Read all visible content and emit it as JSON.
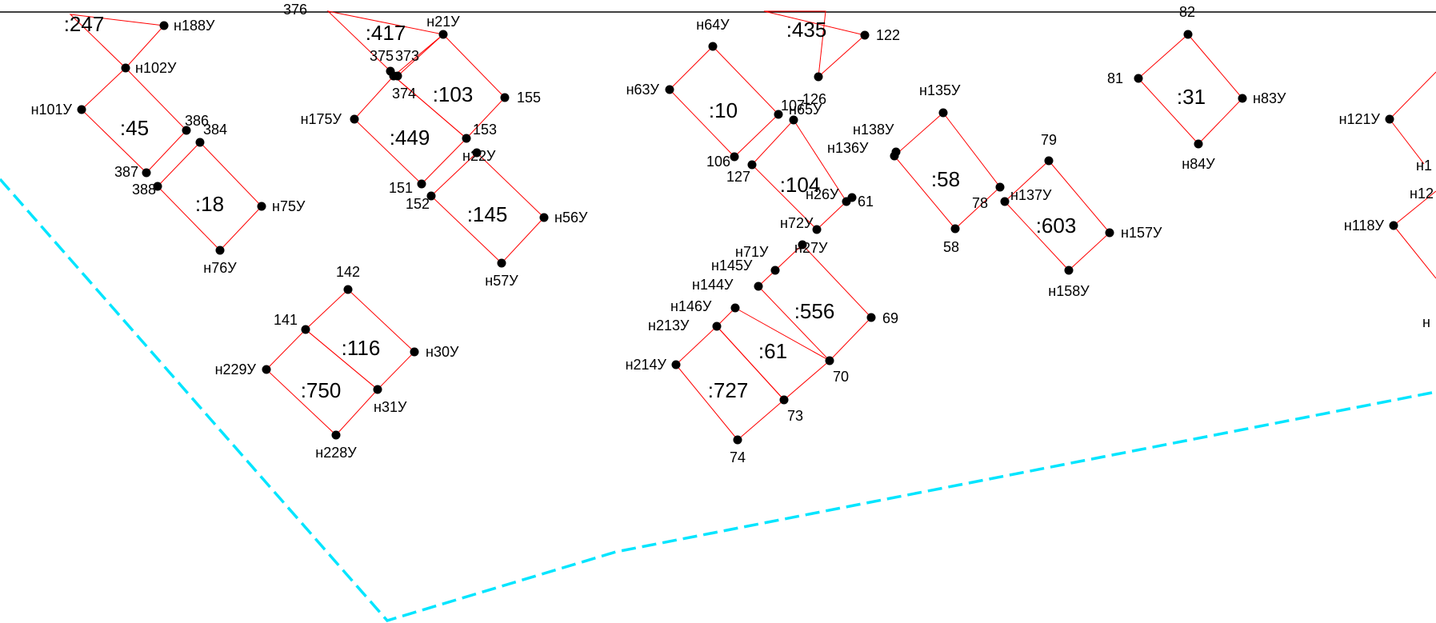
{
  "colors": {
    "parcel": "#ff0000",
    "boundary": "#00e5ff",
    "point": "#000000",
    "text": "#000000"
  },
  "parcels": [
    {
      "id": "247",
      "label": ":247",
      "pts": [
        "a376",
        "n188U",
        "n102U"
      ]
    },
    {
      "id": "45",
      "label": ":45",
      "pts": [
        "n102U",
        "p386",
        "p387",
        "n101U"
      ]
    },
    {
      "id": "18",
      "label": ":18",
      "pts": [
        "p384",
        "n75U",
        "n76U",
        "p388"
      ]
    },
    {
      "id": "417",
      "label": ":417",
      "pts": [
        "p376",
        "n21U",
        "p373",
        "p375"
      ]
    },
    {
      "id": "103",
      "label": ":103",
      "pts": [
        "n21U",
        "p155",
        "p153",
        "p374"
      ]
    },
    {
      "id": "449",
      "label": ":449",
      "pts": [
        "p374",
        "p153",
        "p151",
        "n175U"
      ]
    },
    {
      "id": "145",
      "label": ":145",
      "pts": [
        "n22U",
        "n56U",
        "n57U",
        "p152"
      ]
    },
    {
      "id": "116",
      "label": ":116",
      "pts": [
        "p142",
        "n30U",
        "n31U",
        "p141"
      ]
    },
    {
      "id": "750",
      "label": ":750",
      "pts": [
        "p141",
        "n31U",
        "n228U",
        "n229U"
      ]
    },
    {
      "id": "10",
      "label": ":10",
      "pts": [
        "n64U",
        "p107",
        "p106",
        "n63U"
      ]
    },
    {
      "id": "435",
      "label": ":435",
      "pts": [
        "a435l",
        "p122",
        "p126",
        "a435r"
      ]
    },
    {
      "id": "104",
      "label": ":104",
      "pts": [
        "n65U",
        "p61",
        "n72U",
        "p127"
      ]
    },
    {
      "id": "556",
      "label": ":556",
      "pts": [
        "n27U",
        "p69",
        "p70",
        "n144U"
      ]
    },
    {
      "id": "61",
      "label": ":61",
      "pts": [
        "n146U",
        "p70",
        "p73",
        "n213U"
      ]
    },
    {
      "id": "727",
      "label": ":727",
      "pts": [
        "n213U",
        "p73",
        "p74",
        "n214U"
      ]
    },
    {
      "id": "58",
      "label": ":58",
      "pts": [
        "n135U",
        "p78",
        "p58",
        "n138U"
      ]
    },
    {
      "id": "603",
      "label": ":603",
      "pts": [
        "p79",
        "n157U",
        "n158U",
        "n137U"
      ]
    },
    {
      "id": "31",
      "label": ":31",
      "pts": [
        "p82",
        "n83U",
        "n84U",
        "p81"
      ]
    }
  ],
  "points": [
    {
      "id": "n188U",
      "label": "н188У"
    },
    {
      "id": "n102U",
      "label": "н102У"
    },
    {
      "id": "n101U",
      "label": "н101У"
    },
    {
      "id": "p386",
      "label": "386"
    },
    {
      "id": "p384",
      "label": "384"
    },
    {
      "id": "p387",
      "label": "387"
    },
    {
      "id": "p388",
      "label": "388"
    },
    {
      "id": "n75U",
      "label": "н75У"
    },
    {
      "id": "n76U",
      "label": "н76У"
    },
    {
      "id": "p376",
      "label": "376"
    },
    {
      "id": "n21U",
      "label": "н21У"
    },
    {
      "id": "p375",
      "label": "375"
    },
    {
      "id": "p373",
      "label": "373"
    },
    {
      "id": "p374",
      "label": "374"
    },
    {
      "id": "p155",
      "label": "155"
    },
    {
      "id": "n175U",
      "label": "н175У"
    },
    {
      "id": "p153",
      "label": "153"
    },
    {
      "id": "n22U",
      "label": "н22У"
    },
    {
      "id": "p151",
      "label": "151"
    },
    {
      "id": "p152",
      "label": "152"
    },
    {
      "id": "n56U",
      "label": "н56У"
    },
    {
      "id": "n57U",
      "label": "н57У"
    },
    {
      "id": "p142",
      "label": "142"
    },
    {
      "id": "p141",
      "label": "141"
    },
    {
      "id": "n30U",
      "label": "н30У"
    },
    {
      "id": "n229U",
      "label": "н229У"
    },
    {
      "id": "n31U",
      "label": "н31У"
    },
    {
      "id": "n228U",
      "label": "н228У"
    },
    {
      "id": "n64U",
      "label": "н64У"
    },
    {
      "id": "p122",
      "label": "122"
    },
    {
      "id": "n63U",
      "label": "н63У"
    },
    {
      "id": "p126",
      "label": "126"
    },
    {
      "id": "p107",
      "label": "107"
    },
    {
      "id": "n65U",
      "label": "н65У"
    },
    {
      "id": "p106",
      "label": "106"
    },
    {
      "id": "p127",
      "label": "127"
    },
    {
      "id": "n26U",
      "label": "н26У"
    },
    {
      "id": "p61",
      "label": "61"
    },
    {
      "id": "n72U",
      "label": "н72У"
    },
    {
      "id": "n71U",
      "label": "н71У"
    },
    {
      "id": "n27U",
      "label": "н27У"
    },
    {
      "id": "n145U",
      "label": "н145У"
    },
    {
      "id": "n144U",
      "label": "н144У"
    },
    {
      "id": "n146U",
      "label": "н146У"
    },
    {
      "id": "n213U",
      "label": "н213У"
    },
    {
      "id": "n214U",
      "label": "н214У"
    },
    {
      "id": "p69",
      "label": "69"
    },
    {
      "id": "p70",
      "label": "70"
    },
    {
      "id": "p73",
      "label": "73"
    },
    {
      "id": "p74",
      "label": "74"
    },
    {
      "id": "n135U",
      "label": "н135У"
    },
    {
      "id": "n138U",
      "label": "н138У"
    },
    {
      "id": "n136U",
      "label": "н136У"
    },
    {
      "id": "p78",
      "label": "78"
    },
    {
      "id": "p58",
      "label": "58"
    },
    {
      "id": "p79",
      "label": "79"
    },
    {
      "id": "n137U",
      "label": "н137У"
    },
    {
      "id": "n157U",
      "label": "н157У"
    },
    {
      "id": "n158U",
      "label": "н158У"
    },
    {
      "id": "p82",
      "label": "82"
    },
    {
      "id": "p81",
      "label": "81"
    },
    {
      "id": "n83U",
      "label": "н83У"
    },
    {
      "id": "n84U",
      "label": "н84У"
    },
    {
      "id": "n121U",
      "label": "н121У"
    },
    {
      "id": "n118U",
      "label": "н118У"
    },
    {
      "id": "cut1",
      "label": "н1"
    },
    {
      "id": "cut2",
      "label": "н12"
    },
    {
      "id": "cut3",
      "label": "н"
    }
  ]
}
